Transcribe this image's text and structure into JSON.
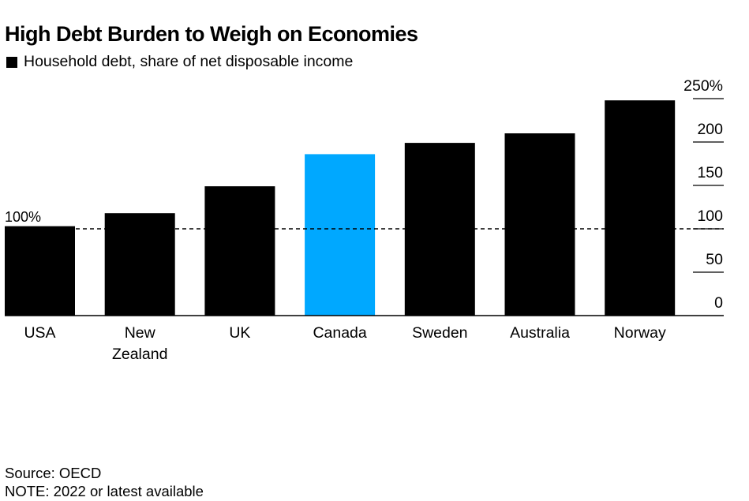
{
  "title": "High Debt Burden to Weigh on Economies",
  "colors": {
    "bar": "#000000",
    "highlight": "#00a8ff",
    "text": "#000000",
    "reference_line": "#000000"
  },
  "chart_data": {
    "type": "bar",
    "title": "High Debt Burden to Weigh on Economies",
    "legend": {
      "placement": "top-left",
      "entries": [
        "Household debt, share of net disposable income"
      ]
    },
    "categories": [
      "USA",
      "New Zealand",
      "UK",
      "Canada",
      "Sweden",
      "Australia",
      "Norway"
    ],
    "category_labels": [
      [
        "USA"
      ],
      [
        "New",
        "Zealand"
      ],
      [
        "UK"
      ],
      [
        "Canada"
      ],
      [
        "Sweden"
      ],
      [
        "Australia"
      ],
      [
        "Norway"
      ]
    ],
    "series": [
      {
        "name": "Household debt, share of net disposable income",
        "values": [
          103,
          118,
          149,
          186,
          199,
          210,
          248
        ]
      }
    ],
    "highlight_category": "Canada",
    "ylim": [
      0,
      250
    ],
    "yticks": [
      0,
      50,
      100,
      150,
      200,
      250
    ],
    "ytick_labels": [
      "0",
      "50",
      "100",
      "150",
      "200",
      "250%"
    ],
    "y_axis_side": "right",
    "reference_line": {
      "value": 100,
      "label": "100%",
      "style": "dashed"
    },
    "grid": false,
    "xlabel": "",
    "ylabel": ""
  },
  "footer": {
    "source": "Source: OECD",
    "note": "NOTE: 2022 or latest available"
  }
}
